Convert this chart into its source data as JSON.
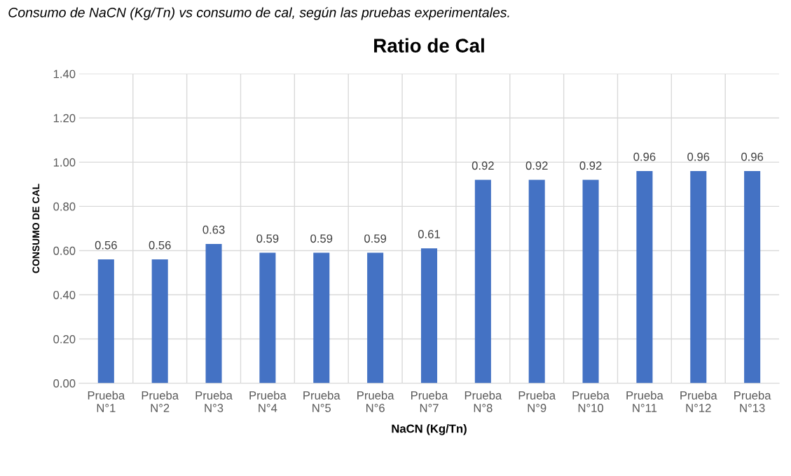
{
  "chart_data": {
    "type": "bar",
    "title": "Ratio de Cal",
    "xlabel": "NaCN (Kg/Tn)",
    "ylabel": "CONSUMO DE CAL",
    "annotations": [
      "Consumo de NaCN (Kg/Tn) vs consumo de cal, según las pruebas experimentales."
    ],
    "categories": [
      "Prueba\nN°1",
      "Prueba\nN°2",
      "Prueba\nN°3",
      "Prueba\nN°4",
      "Prueba\nN°5",
      "Prueba\nN°6",
      "Prueba\nN°7",
      "Prueba\nN°8",
      "Prueba\nN°9",
      "Prueba\nN°10",
      "Prueba\nN°11",
      "Prueba\nN°12",
      "Prueba\nN°13"
    ],
    "values": [
      0.56,
      0.56,
      0.63,
      0.59,
      0.59,
      0.59,
      0.61,
      0.92,
      0.92,
      0.92,
      0.96,
      0.96,
      0.96
    ],
    "color": "#4472c4",
    "data_labels": true,
    "grid": true,
    "ylim": [
      0,
      1.4
    ],
    "yticks": [
      {
        "value": 0,
        "label": "0.00"
      },
      {
        "value": 0.2,
        "label": "0.20"
      },
      {
        "value": 0.4,
        "label": "0.40"
      },
      {
        "value": 0.6,
        "label": "0.60"
      },
      {
        "value": 0.8,
        "label": "0.80"
      },
      {
        "value": 1.0,
        "label": "1.00"
      },
      {
        "value": 1.2,
        "label": "1.20"
      },
      {
        "value": 1.4,
        "label": "1.40"
      }
    ]
  }
}
